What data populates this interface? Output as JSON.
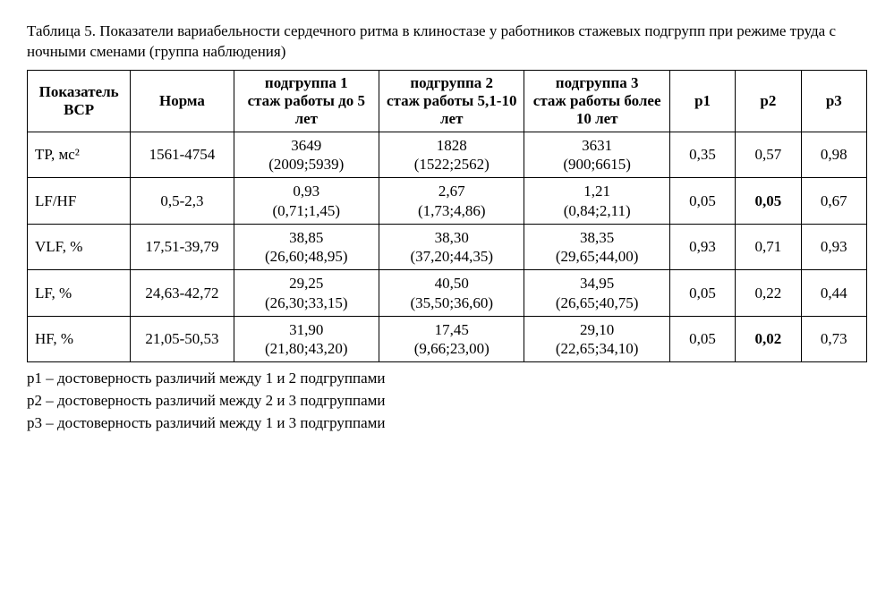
{
  "caption": "Таблица 5.  Показатели вариабельности сердечного ритма в клиностазе у работников стажевых подгрупп при режиме труда с ночными сменами (группа наблюдения)",
  "headers": {
    "label": "Показатель ВСР",
    "norm": "Норма",
    "sub1": "подгруппа 1\nстаж работы до 5 лет",
    "sub2": "подгруппа 2\nстаж работы 5,1-10 лет",
    "sub3": "подгруппа 3\nстаж работы более 10 лет",
    "p1": "p1",
    "p2": "p2",
    "p3": "p3"
  },
  "rows": [
    {
      "label": "TP, мс²",
      "norm": "1561-4754",
      "sub1_main": "3649",
      "sub1_ci": "(2009;5939)",
      "sub2_main": "1828",
      "sub2_ci": "(1522;2562)",
      "sub3_main": "3631",
      "sub3_ci": "(900;6615)",
      "p1": "0,35",
      "p1_bold": false,
      "p2": "0,57",
      "p2_bold": false,
      "p3": "0,98",
      "p3_bold": false
    },
    {
      "label": "LF/HF",
      "norm": "0,5-2,3",
      "sub1_main": "0,93",
      "sub1_ci": "(0,71;1,45)",
      "sub2_main": "2,67",
      "sub2_ci": "(1,73;4,86)",
      "sub3_main": "1,21",
      "sub3_ci": "(0,84;2,11)",
      "p1": "0,05",
      "p1_bold": false,
      "p2": "0,05",
      "p2_bold": true,
      "p3": "0,67",
      "p3_bold": false
    },
    {
      "label": "VLF, %",
      "norm": "17,51-39,79",
      "sub1_main": "38,85",
      "sub1_ci": "(26,60;48,95)",
      "sub2_main": "38,30",
      "sub2_ci": "(37,20;44,35)",
      "sub3_main": "38,35",
      "sub3_ci": "(29,65;44,00)",
      "p1": "0,93",
      "p1_bold": false,
      "p2": "0,71",
      "p2_bold": false,
      "p3": "0,93",
      "p3_bold": false
    },
    {
      "label": "LF, %",
      "norm": "24,63-42,72",
      "sub1_main": "29,25",
      "sub1_ci": "(26,30;33,15)",
      "sub2_main": "40,50",
      "sub2_ci": "(35,50;36,60)",
      "sub3_main": "34,95",
      "sub3_ci": "(26,65;40,75)",
      "p1": "0,05",
      "p1_bold": false,
      "p2": "0,22",
      "p2_bold": false,
      "p3": "0,44",
      "p3_bold": false
    },
    {
      "label": "HF, %",
      "norm": "21,05-50,53",
      "sub1_main": "31,90",
      "sub1_ci": "(21,80;43,20)",
      "sub2_main": "17,45",
      "sub2_ci": "(9,66;23,00)",
      "sub3_main": "29,10",
      "sub3_ci": "(22,65;34,10)",
      "p1": "0,05",
      "p1_bold": false,
      "p2": "0,02",
      "p2_bold": true,
      "p3": "0,73",
      "p3_bold": false
    }
  ],
  "footnotes": {
    "f1": "p1 – достоверность различий между  1 и 2 подгруппами",
    "f2": "p2 – достоверность различий между  2 и 3 подгруппами",
    "f3": "p3 – достоверность различий между  1 и 3 подгруппами"
  }
}
